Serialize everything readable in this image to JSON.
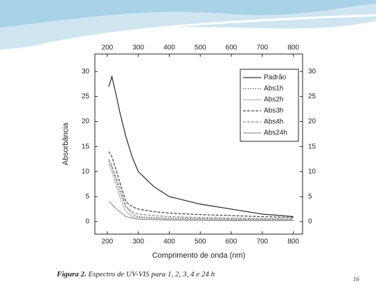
{
  "chart_data": {
    "type": "line",
    "xlabel": "Comprimento de onda (nm)",
    "ylabel": "Absorbância",
    "x": [
      205,
      215,
      230,
      240,
      260,
      280,
      300,
      350,
      400,
      500,
      600,
      700,
      800
    ],
    "series": [
      {
        "name": "Padrão",
        "color": "#333333",
        "dash": "solid",
        "values": [
          27,
          29,
          25,
          22,
          17,
          13,
          10,
          7,
          5,
          3.5,
          2.5,
          1.5,
          1
        ]
      },
      {
        "name": "Abs1h",
        "color": "#555555",
        "dash": "dot",
        "values": [
          12,
          11,
          8,
          6,
          3,
          1.5,
          1,
          0.8,
          0.7,
          0.6,
          0.5,
          0.45,
          0.4
        ]
      },
      {
        "name": "Abs2h",
        "color": "#bbbbbb",
        "dash": "solid",
        "values": [
          11.5,
          10,
          7,
          5,
          2,
          1,
          0.8,
          0.6,
          0.5,
          0.4,
          0.35,
          0.3,
          0.3
        ]
      },
      {
        "name": "Abs3h",
        "color": "#444444",
        "dash": "dash",
        "values": [
          14,
          13,
          10,
          8,
          4,
          3,
          2.5,
          2,
          1.7,
          1.4,
          1.2,
          1,
          0.8
        ]
      },
      {
        "name": "Abs4h",
        "color": "#888888",
        "dash": "dash",
        "values": [
          12.5,
          11,
          8.5,
          7,
          3,
          2,
          1.5,
          1.2,
          1,
          0.8,
          0.7,
          0.6,
          0.5
        ]
      },
      {
        "name": "Abs24h",
        "color": "#999999",
        "dash": "solid",
        "values": [
          4,
          3.5,
          2.5,
          2,
          1,
          0.7,
          0.5,
          0.4,
          0.3,
          0.25,
          0.2,
          0.2,
          0.2
        ]
      }
    ],
    "xlim": [
      160,
      830
    ],
    "xticks": [
      200,
      300,
      400,
      500,
      600,
      700,
      800
    ],
    "x2ticks": [
      200,
      300,
      400,
      500,
      600,
      700,
      800
    ],
    "ylim": [
      -2.5,
      33.5
    ],
    "yticks": [
      0,
      5,
      10,
      15,
      20,
      25,
      30
    ],
    "y2lim": [
      -2.5,
      33.5
    ],
    "y2ticks": [
      0,
      5,
      10,
      15,
      20,
      25,
      30
    ],
    "legend": "upper right",
    "grid": false
  },
  "caption": {
    "label": "Figura 2.",
    "text": "Espectro de UV-VIS para 1, 2, 3, 4 e 24 h"
  },
  "page_number": "16"
}
